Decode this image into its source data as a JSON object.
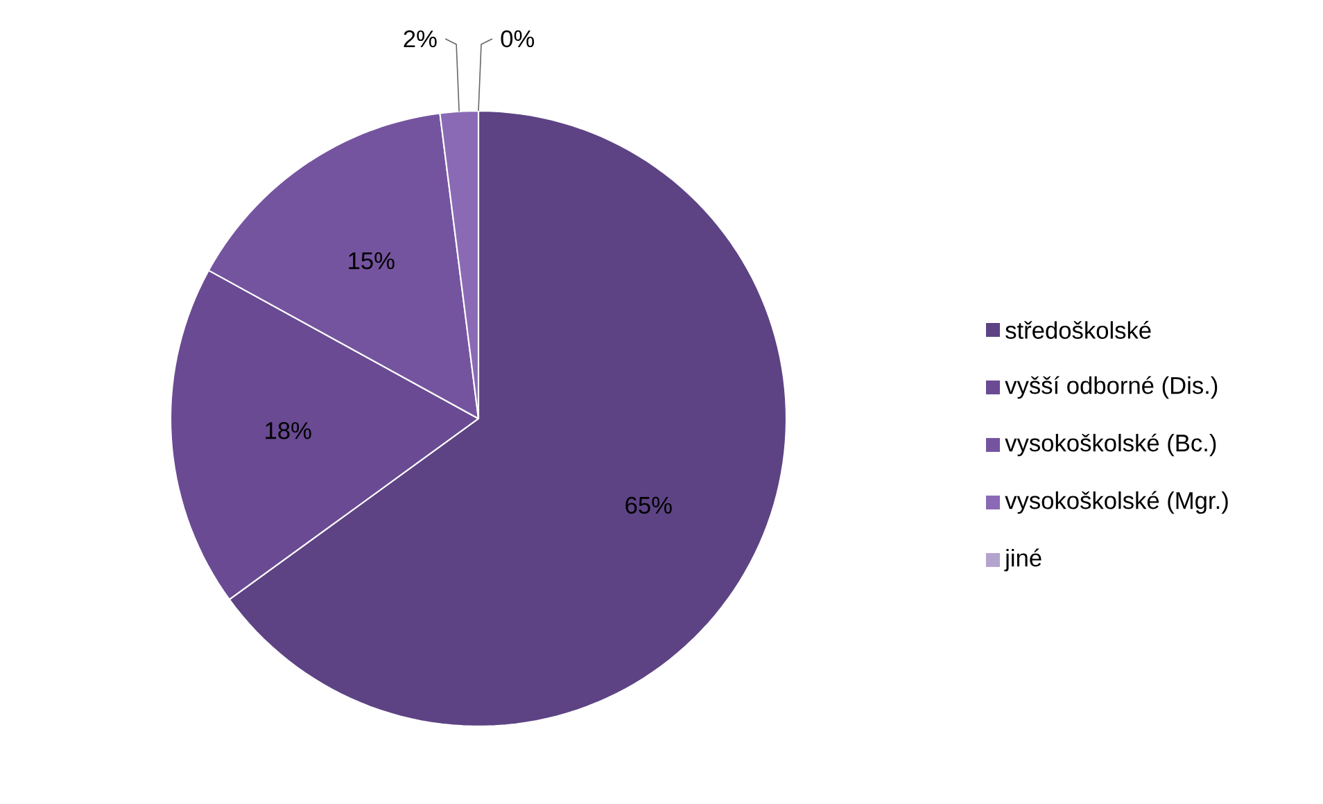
{
  "chart_data": {
    "type": "pie",
    "categories": [
      "středoškolské",
      "vyšší odborné (Dis.)",
      "vysokoškolské (Bc.)",
      "vysokoškolské (Mgr.)",
      "jiné"
    ],
    "values": [
      65,
      18,
      15,
      2,
      0
    ],
    "value_labels": [
      "65%",
      "18%",
      "15%",
      "2%",
      "0%"
    ],
    "colors": [
      "#5d4384",
      "#6a4a92",
      "#75549f",
      "#8a6ab5",
      "#b4a3cf"
    ],
    "legend": "right"
  }
}
